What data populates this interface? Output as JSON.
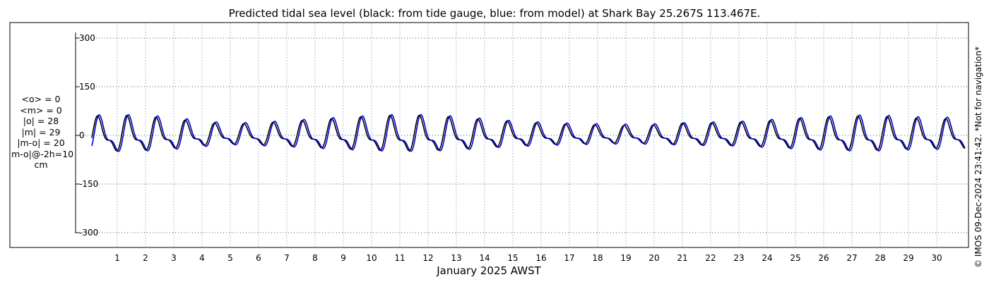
{
  "chart_data": {
    "type": "line",
    "title": "Predicted tidal sea level (black: from tide gauge, blue: from model) at Shark Bay 25.267S 113.467E.",
    "xlabel": "January 2025 AWST",
    "ylabel": "",
    "x_ticks": [
      "1",
      "2",
      "3",
      "4",
      "5",
      "6",
      "7",
      "8",
      "9",
      "10",
      "11",
      "12",
      "13",
      "14",
      "15",
      "16",
      "17",
      "18",
      "19",
      "20",
      "21",
      "22",
      "23",
      "24",
      "25",
      "26",
      "27",
      "28",
      "29",
      "30"
    ],
    "y_ticks": [
      "300",
      "150",
      "0",
      "-150",
      "-300"
    ],
    "x_range_days": [
      0.1,
      31.0
    ],
    "ylim": [
      -310,
      310
    ],
    "grid": true,
    "series": [
      {
        "name": "tide gauge",
        "color": "#000000",
        "amplitude_cm": [
          55,
          58,
          55,
          48,
          38,
          32,
          35,
          40,
          45,
          50,
          55,
          58,
          57,
          52,
          45,
          40,
          35,
          32,
          30,
          28,
          30,
          35,
          36,
          38,
          42,
          48,
          52,
          55,
          55,
          50,
          48
        ]
      },
      {
        "name": "model",
        "color": "#0000cc",
        "amplitude_cm": [
          58,
          60,
          58,
          52,
          42,
          35,
          38,
          42,
          48,
          52,
          57,
          60,
          59,
          55,
          48,
          42,
          38,
          35,
          33,
          32,
          33,
          36,
          38,
          40,
          45,
          50,
          55,
          58,
          58,
          54,
          52
        ]
      }
    ]
  },
  "stats": [
    "<o> = 0",
    "<m> = 0",
    "|o| = 28",
    "|m| = 29",
    "|m-o| = 20",
    "|m-o|@-2h=10",
    "cm"
  ],
  "credit": "© IMOS 09-Dec-2024 23:41:42. *Not for navigation*"
}
